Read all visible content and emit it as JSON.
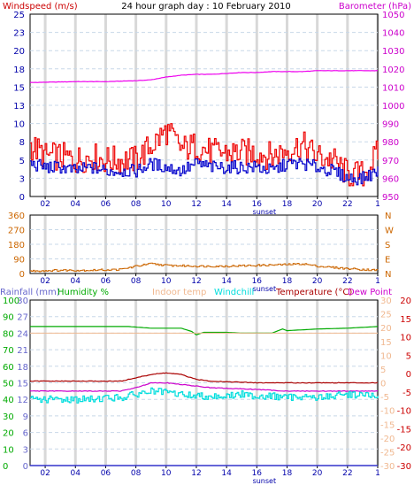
{
  "chart_data": [
    {
      "id": "panel1",
      "type": "line",
      "title": "24 hour graph day : 10 February 2010",
      "left_label": "Windspeed (m/s)",
      "right_label": "Barometer (hPa)",
      "x_ticks": [
        "02",
        "04",
        "06",
        "08",
        "10",
        "12",
        "14",
        "16",
        "18",
        "20",
        "22",
        "1"
      ],
      "x_annotation": "sunset",
      "left_axis": {
        "min": 0,
        "max": 25,
        "ticks": [
          "0",
          "3",
          "5",
          "8",
          "10",
          "13",
          "15",
          "18",
          "20",
          "23",
          "25"
        ]
      },
      "right_axis": {
        "min": 950,
        "max": 1050,
        "ticks": [
          "950",
          "960",
          "970",
          "980",
          "990",
          "1000",
          "1010",
          "1020",
          "1030",
          "1040",
          "1050"
        ]
      },
      "grid": true,
      "series": [
        {
          "name": "Barometer",
          "color": "#ee00ee",
          "axis": "right",
          "x": [
            1,
            4,
            6,
            8,
            9,
            10,
            11,
            12,
            13,
            14,
            15,
            16,
            17,
            18,
            19,
            20,
            21,
            22,
            23,
            24
          ],
          "y": [
            1012.5,
            1013,
            1013,
            1013.5,
            1014,
            1015.5,
            1016.5,
            1017,
            1017,
            1017.5,
            1018,
            1018,
            1018.5,
            1018.5,
            1018.5,
            1019,
            1019,
            1019,
            1019,
            1019
          ]
        },
        {
          "name": "Gust",
          "color": "#ee0000",
          "axis": "left",
          "x": [
            1,
            2,
            3,
            4,
            5,
            6,
            7,
            8,
            9,
            10,
            11,
            12,
            13,
            14,
            15,
            16,
            17,
            18,
            19,
            20,
            21,
            22,
            23,
            24
          ],
          "y": [
            7,
            5.5,
            5.5,
            5,
            5.5,
            5,
            5,
            5,
            7,
            9,
            6.5,
            7,
            6,
            6,
            6,
            6,
            5.5,
            6.5,
            7,
            5.5,
            5,
            3,
            3,
            6
          ]
        },
        {
          "name": "Windspeed",
          "color": "#0000cc",
          "axis": "left",
          "x": [
            1,
            2,
            3,
            4,
            5,
            6,
            7,
            8,
            9,
            10,
            11,
            12,
            13,
            14,
            15,
            16,
            17,
            18,
            19,
            20,
            21,
            22,
            23,
            24
          ],
          "y": [
            4.5,
            4,
            4,
            3.5,
            4,
            3.5,
            3.5,
            3.5,
            4.5,
            4,
            3.5,
            4.5,
            4,
            4,
            4,
            4,
            3.5,
            4.5,
            4.5,
            4,
            3.5,
            2.5,
            2.5,
            3.5
          ]
        }
      ]
    },
    {
      "id": "panel2",
      "type": "line",
      "x_ticks": [
        "02",
        "04",
        "06",
        "08",
        "10",
        "12",
        "14",
        "16",
        "18",
        "20",
        "22",
        "1"
      ],
      "x_annotation": "sunset",
      "left_axis": {
        "min": 0,
        "max": 360,
        "ticks": [
          "0",
          "90",
          "180",
          "270",
          "360"
        ]
      },
      "right_axis_labels": [
        "N",
        "E",
        "S",
        "W",
        "N"
      ],
      "grid": true,
      "series": [
        {
          "name": "Wind direction",
          "color": "#cc6600",
          "x": [
            1,
            3,
            5,
            7,
            8,
            9,
            10,
            12,
            14,
            16,
            18,
            19,
            20,
            22,
            24
          ],
          "y": [
            15,
            20,
            20,
            25,
            45,
            60,
            50,
            45,
            45,
            50,
            55,
            60,
            45,
            30,
            20
          ]
        }
      ]
    },
    {
      "id": "panel3",
      "type": "line",
      "legend": [
        "Rainfall (mm)",
        "Humidity %",
        "Indoor temp",
        "Windchill",
        "Temperature (°C)",
        "Dew Point"
      ],
      "x_ticks": [
        "02",
        "04",
        "06",
        "08",
        "10",
        "12",
        "14",
        "16",
        "18",
        "20",
        "22",
        "1"
      ],
      "x_annotation": "sunset",
      "humidity_axis": {
        "min": 0,
        "max": 100,
        "ticks": [
          "0",
          "10",
          "20",
          "30",
          "40",
          "50",
          "60",
          "70",
          "80",
          "90",
          "100"
        ]
      },
      "rain_axis": {
        "min": 0,
        "max": 30,
        "ticks": [
          "0",
          "3",
          "6",
          "9",
          "12",
          "15",
          "18",
          "21",
          "24",
          "27",
          "30"
        ]
      },
      "temp_axis_left": {
        "min": -30,
        "max": 30,
        "ticks": [
          "-30",
          "-25",
          "-20",
          "-15",
          "-10",
          "-5",
          "0",
          "5",
          "10",
          "15",
          "20",
          "25",
          "30"
        ]
      },
      "temp_axis_right": {
        "min": -30,
        "max": 20,
        "ticks": [
          "-30",
          "-20",
          "-15",
          "-10",
          "-5",
          "0",
          "5",
          "10",
          "15",
          "20"
        ]
      },
      "grid": true,
      "series": [
        {
          "name": "Humidity %",
          "color": "#00aa00",
          "axis": "humidity",
          "x": [
            1,
            4,
            6,
            7.5,
            9,
            11,
            11.7,
            12,
            12.5,
            14,
            15,
            17,
            17.7,
            18,
            20,
            22,
            24
          ],
          "y": [
            84,
            84,
            84,
            84,
            83,
            83,
            81,
            79,
            80.5,
            80.5,
            80,
            80,
            82.5,
            81.5,
            82.5,
            83,
            84
          ]
        },
        {
          "name": "Indoor temp",
          "color": "#f0b890",
          "axis": "temp_right",
          "x": [
            1,
            12,
            24
          ],
          "y": [
            10,
            10,
            10
          ]
        },
        {
          "name": "Temperature (°C)",
          "color": "#aa0000",
          "axis": "temp_right",
          "x": [
            1,
            5,
            7,
            8,
            9,
            10,
            11,
            12,
            13,
            16,
            18,
            20,
            22,
            24
          ],
          "y": [
            -4.5,
            -4.5,
            -4.5,
            -3.5,
            -2.5,
            -2,
            -2.5,
            -4,
            -4.5,
            -5,
            -5,
            -5,
            -5,
            -5
          ]
        },
        {
          "name": "Dew Point",
          "color": "#cc00cc",
          "axis": "temp_right",
          "x": [
            1,
            5,
            7,
            8,
            9,
            10,
            11,
            12,
            13,
            16,
            18,
            20,
            22,
            24
          ],
          "y": [
            -7.5,
            -7.5,
            -7.5,
            -6.5,
            -5,
            -5,
            -5.5,
            -6,
            -6.5,
            -7,
            -7.5,
            -7.5,
            -7.5,
            -7.5
          ]
        },
        {
          "name": "Windchill",
          "color": "#00dddd",
          "axis": "temp_right",
          "x": [
            1,
            2,
            3,
            4,
            5,
            6,
            7,
            8,
            9,
            10,
            11,
            12,
            13,
            14,
            15,
            16,
            17,
            18,
            19,
            20,
            21,
            22,
            23,
            24
          ],
          "y": [
            -10,
            -10,
            -10,
            -10,
            -10,
            -9.5,
            -9.5,
            -8.5,
            -7.5,
            -8,
            -8.5,
            -9,
            -9,
            -9,
            -8.5,
            -9,
            -9,
            -9.5,
            -9,
            -9.5,
            -9,
            -8.5,
            -8.5,
            -9.5
          ]
        },
        {
          "name": "Rainfall (mm)",
          "color": "#3333cc",
          "axis": "rain",
          "x": [
            1,
            24
          ],
          "y": [
            0,
            0
          ]
        }
      ]
    }
  ]
}
